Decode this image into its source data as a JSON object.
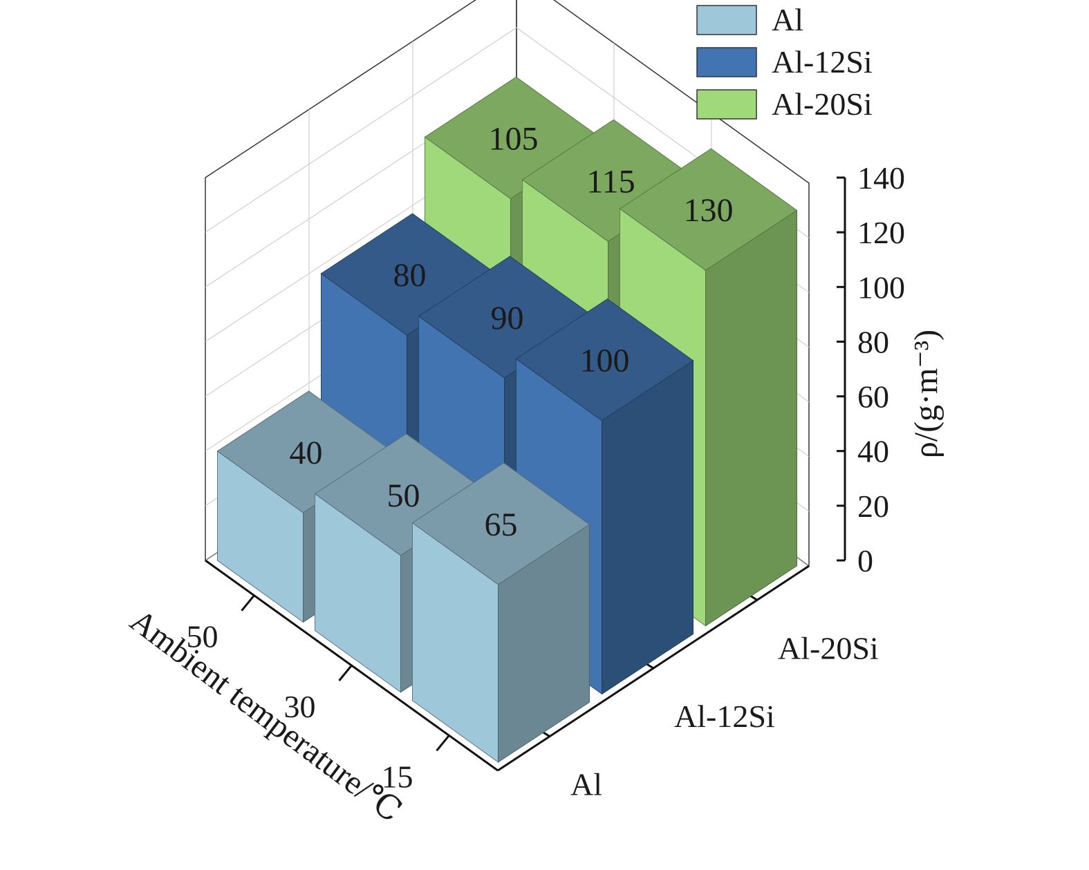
{
  "chart_data": {
    "type": "bar3d",
    "x_categories": [
      "15",
      "30",
      "50"
    ],
    "series": [
      {
        "name": "Al",
        "values": [
          65,
          50,
          40
        ],
        "color": "#9fc7da"
      },
      {
        "name": "Al-12Si",
        "values": [
          100,
          90,
          80
        ],
        "color": "#4174b0"
      },
      {
        "name": "Al-20Si",
        "values": [
          130,
          115,
          105
        ],
        "color": "#9fd97a"
      }
    ],
    "xlabel": "Ambient temperature/℃",
    "ylabel": "ρ/(g·m⁻³)",
    "zlim": [
      0,
      140
    ],
    "z_ticks": [
      "0",
      "20",
      "40",
      "60",
      "80",
      "100",
      "120",
      "140"
    ],
    "grid": true,
    "legend_position": "top-right",
    "data_labels": true
  }
}
